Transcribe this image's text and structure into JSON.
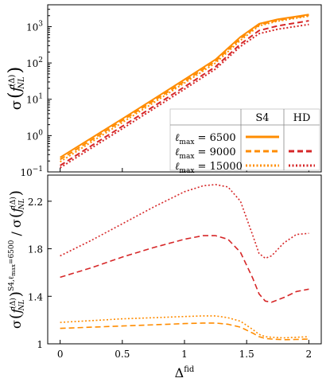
{
  "chart_data": [
    {
      "type": "line",
      "scale": "log-y",
      "xlim": [
        -0.1,
        2.1
      ],
      "ylim": [
        0.1,
        4000
      ],
      "ylabel_base": "σ",
      "ylabel_arg": "f",
      "ylabel_arg_sub": "NL",
      "ylabel_arg_sup": "(Δ)",
      "yticks": [
        {
          "value": 0.1,
          "base": "10",
          "exp": "−1"
        },
        {
          "value": 1,
          "base": "10",
          "exp": "0"
        },
        {
          "value": 10,
          "base": "10",
          "exp": "1"
        },
        {
          "value": 100,
          "base": "10",
          "exp": "2"
        },
        {
          "value": 1000,
          "base": "10",
          "exp": "3"
        }
      ],
      "x": [
        0,
        0.25,
        0.5,
        0.75,
        1.0,
        1.25,
        1.45,
        1.6,
        1.75,
        2.0
      ],
      "series": [
        {
          "experiment": "S4",
          "lmax": 6500,
          "color": "#ff8c00",
          "dash": "solid",
          "values": [
            0.25,
            0.85,
            2.9,
            10,
            35,
            125,
            520,
            1200,
            1600,
            2150
          ]
        },
        {
          "experiment": "S4",
          "lmax": 9000,
          "color": "#ff8c00",
          "dash": "dashed",
          "values": [
            0.22,
            0.75,
            2.6,
            9,
            31,
            112,
            470,
            1120,
            1500,
            2050
          ]
        },
        {
          "experiment": "S4",
          "lmax": 15000,
          "color": "#ff8c00",
          "dash": "dotted",
          "values": [
            0.19,
            0.66,
            2.3,
            8,
            28,
            100,
            420,
            1050,
            1420,
            1950
          ]
        },
        {
          "experiment": "HD",
          "lmax": 9000,
          "color": "#d62728",
          "dash": "dashed",
          "values": [
            0.15,
            0.52,
            1.8,
            6.3,
            22,
            79,
            330,
            780,
            1050,
            1450
          ]
        },
        {
          "experiment": "HD",
          "lmax": 15000,
          "color": "#d62728",
          "dash": "dotted",
          "values": [
            0.13,
            0.45,
            1.55,
            5.4,
            19,
            68,
            285,
            640,
            850,
            1150
          ]
        }
      ],
      "legend": {
        "placement": "lower-right",
        "col_headers": [
          "S4",
          "HD"
        ],
        "rows": [
          {
            "label_prefix": "ℓ",
            "label_sub": "max",
            "label_value": " = 6500",
            "has_hd": false
          },
          {
            "label_prefix": "ℓ",
            "label_sub": "max",
            "label_value": " = 9000",
            "has_hd": true
          },
          {
            "label_prefix": "ℓ",
            "label_sub": "max",
            "label_value": " = 15000",
            "has_hd": true
          }
        ]
      }
    },
    {
      "type": "line",
      "xlim": [
        -0.1,
        2.1
      ],
      "ylim": [
        1,
        2.42
      ],
      "xlabel_base": "Δ",
      "xlabel_sup": "fid",
      "ylabel_num_base": "σ",
      "ylabel_num_sup": "S4,ℓ",
      "ylabel_num_sup_sub": "max",
      "ylabel_num_sup_tail": "=6500",
      "ylabel_div": "/",
      "ylabel_den_base": "σ",
      "xticks": [
        {
          "value": 0,
          "label": "0"
        },
        {
          "value": 0.5,
          "label": "0.5"
        },
        {
          "value": 1,
          "label": "1"
        },
        {
          "value": 1.5,
          "label": "1.5"
        },
        {
          "value": 2,
          "label": "2"
        }
      ],
      "yticks": [
        {
          "value": 1,
          "label": "1"
        },
        {
          "value": 1.4,
          "label": "1.4"
        },
        {
          "value": 1.8,
          "label": "1.8"
        },
        {
          "value": 2.2,
          "label": "2.2"
        }
      ],
      "x": [
        0,
        0.25,
        0.5,
        0.75,
        1.0,
        1.15,
        1.25,
        1.35,
        1.45,
        1.55,
        1.6,
        1.65,
        1.7,
        1.8,
        1.9,
        2.0
      ],
      "series": [
        {
          "experiment": "S4",
          "lmax": 9000,
          "color": "#ff8c00",
          "dash": "dashed",
          "values": [
            1.13,
            1.14,
            1.15,
            1.16,
            1.17,
            1.175,
            1.175,
            1.165,
            1.14,
            1.09,
            1.06,
            1.045,
            1.04,
            1.035,
            1.037,
            1.04
          ]
        },
        {
          "experiment": "S4",
          "lmax": 15000,
          "color": "#ff8c00",
          "dash": "dotted",
          "values": [
            1.18,
            1.195,
            1.21,
            1.22,
            1.23,
            1.235,
            1.235,
            1.22,
            1.19,
            1.12,
            1.08,
            1.06,
            1.055,
            1.05,
            1.055,
            1.06
          ]
        },
        {
          "experiment": "HD",
          "lmax": 9000,
          "color": "#d62728",
          "dash": "dashed",
          "values": [
            1.56,
            1.64,
            1.73,
            1.81,
            1.88,
            1.91,
            1.91,
            1.88,
            1.77,
            1.55,
            1.42,
            1.36,
            1.35,
            1.39,
            1.44,
            1.46
          ]
        },
        {
          "experiment": "HD",
          "lmax": 15000,
          "color": "#d62728",
          "dash": "dotted",
          "values": [
            1.74,
            1.87,
            2.01,
            2.15,
            2.28,
            2.33,
            2.34,
            2.32,
            2.2,
            1.91,
            1.76,
            1.72,
            1.74,
            1.85,
            1.92,
            1.93
          ]
        }
      ]
    }
  ]
}
